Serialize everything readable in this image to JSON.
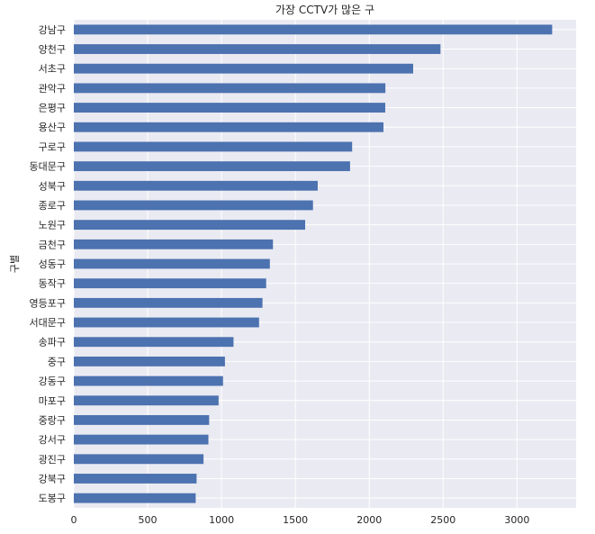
{
  "chart_data": {
    "type": "bar",
    "orientation": "horizontal",
    "title": "가장 CCTV가 많은 구",
    "xlabel": "",
    "ylabel": "구별",
    "categories": [
      "강남구",
      "양천구",
      "서초구",
      "관악구",
      "은평구",
      "용산구",
      "구로구",
      "동대문구",
      "성북구",
      "종로구",
      "노원구",
      "금천구",
      "성동구",
      "동작구",
      "영등포구",
      "서대문구",
      "송파구",
      "중구",
      "강동구",
      "마포구",
      "중랑구",
      "강서구",
      "광진구",
      "강북구",
      "도봉구"
    ],
    "values": [
      3238,
      2482,
      2297,
      2109,
      2108,
      2096,
      1884,
      1870,
      1651,
      1619,
      1566,
      1348,
      1327,
      1302,
      1277,
      1254,
      1081,
      1023,
      1010,
      980,
      916,
      911,
      878,
      831,
      825
    ],
    "xlim": [
      0,
      3400
    ],
    "xticks": [
      0,
      500,
      1000,
      1500,
      2000,
      2500,
      3000
    ],
    "grid": true,
    "legend": "none",
    "colors": {
      "bar": "#4c72b0",
      "plot_bg": "#eaeaf2",
      "grid": "#ffffff",
      "text": "#262626"
    }
  }
}
